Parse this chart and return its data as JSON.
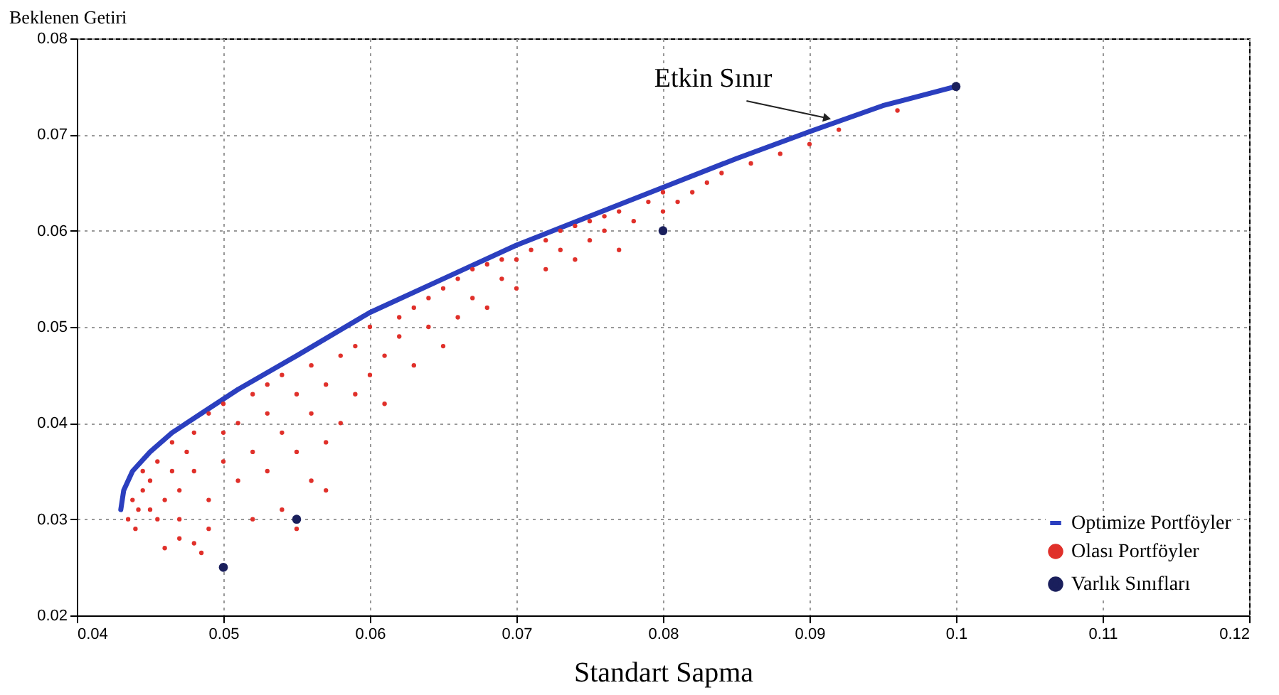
{
  "chart_data": {
    "type": "scatter",
    "xlabel": "Standart Sapma",
    "ylabel": "Beklenen Getiri",
    "xlim": [
      0.04,
      0.12
    ],
    "xticks": [
      0.04,
      0.05,
      0.06,
      0.07,
      0.08,
      0.09,
      0.1,
      0.11,
      0.12
    ],
    "ylim": [
      0.02,
      0.08
    ],
    "yticks": [
      0.02,
      0.03,
      0.04,
      0.05,
      0.06,
      0.07,
      0.08
    ],
    "grid": true,
    "legend": "bottom right",
    "annotations": [
      {
        "text": "Etkin Sınır",
        "x": 0.092,
        "y": 0.0714
      }
    ],
    "series": [
      {
        "name": "Optimize Portföyler",
        "type": "line",
        "color": "#2b3fbf",
        "x": [
          0.043,
          0.0432,
          0.0438,
          0.045,
          0.0465,
          0.0485,
          0.051,
          0.055,
          0.06,
          0.065,
          0.07,
          0.075,
          0.08,
          0.085,
          0.09,
          0.095,
          0.1
        ],
        "values": [
          0.031,
          0.033,
          0.035,
          0.037,
          0.039,
          0.041,
          0.0435,
          0.047,
          0.0515,
          0.055,
          0.0585,
          0.0615,
          0.0645,
          0.0675,
          0.0703,
          0.073,
          0.075
        ]
      },
      {
        "name": "Olası Portföyler",
        "color": "#e0302a",
        "x": [
          0.0435,
          0.0438,
          0.044,
          0.0442,
          0.0445,
          0.0445,
          0.045,
          0.045,
          0.0455,
          0.0455,
          0.046,
          0.046,
          0.0465,
          0.0465,
          0.047,
          0.047,
          0.0475,
          0.048,
          0.048,
          0.048,
          0.0485,
          0.049,
          0.049,
          0.049,
          0.05,
          0.05,
          0.05,
          0.051,
          0.051,
          0.052,
          0.052,
          0.052,
          0.053,
          0.053,
          0.053,
          0.054,
          0.054,
          0.054,
          0.055,
          0.055,
          0.056,
          0.056,
          0.056,
          0.057,
          0.057,
          0.057,
          0.058,
          0.058,
          0.059,
          0.059,
          0.06,
          0.06,
          0.061,
          0.061,
          0.062,
          0.062,
          0.063,
          0.063,
          0.064,
          0.064,
          0.065,
          0.065,
          0.066,
          0.066,
          0.067,
          0.067,
          0.068,
          0.068,
          0.069,
          0.069,
          0.07,
          0.07,
          0.071,
          0.072,
          0.072,
          0.073,
          0.073,
          0.074,
          0.074,
          0.075,
          0.075,
          0.076,
          0.076,
          0.077,
          0.077,
          0.078,
          0.079,
          0.08,
          0.08,
          0.081,
          0.082,
          0.083,
          0.084,
          0.086,
          0.088,
          0.09,
          0.092,
          0.096,
          0.047,
          0.055
        ],
        "values": [
          0.03,
          0.032,
          0.029,
          0.031,
          0.033,
          0.035,
          0.031,
          0.034,
          0.036,
          0.03,
          0.027,
          0.032,
          0.035,
          0.038,
          0.03,
          0.033,
          0.037,
          0.0275,
          0.035,
          0.039,
          0.0265,
          0.032,
          0.041,
          0.029,
          0.036,
          0.039,
          0.042,
          0.034,
          0.04,
          0.03,
          0.037,
          0.043,
          0.035,
          0.041,
          0.044,
          0.031,
          0.039,
          0.045,
          0.037,
          0.043,
          0.034,
          0.041,
          0.046,
          0.038,
          0.044,
          0.033,
          0.04,
          0.047,
          0.043,
          0.048,
          0.045,
          0.05,
          0.047,
          0.042,
          0.049,
          0.051,
          0.046,
          0.052,
          0.05,
          0.053,
          0.048,
          0.054,
          0.051,
          0.055,
          0.053,
          0.056,
          0.052,
          0.0565,
          0.055,
          0.057,
          0.054,
          0.057,
          0.058,
          0.056,
          0.059,
          0.058,
          0.06,
          0.057,
          0.0605,
          0.059,
          0.061,
          0.06,
          0.0615,
          0.058,
          0.062,
          0.061,
          0.063,
          0.062,
          0.064,
          0.063,
          0.064,
          0.065,
          0.066,
          0.067,
          0.068,
          0.069,
          0.0705,
          0.0725,
          0.028,
          0.029
        ]
      },
      {
        "name": "Varlık Sınıfları",
        "color": "#1a1f5c",
        "x": [
          0.05,
          0.055,
          0.08,
          0.1
        ],
        "values": [
          0.025,
          0.03,
          0.06,
          0.075
        ]
      }
    ]
  }
}
